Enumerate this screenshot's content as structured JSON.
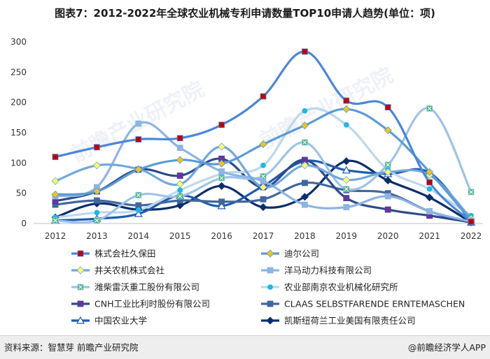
{
  "chart_data": {
    "type": "line",
    "title": "图表7：2012-2022年全球农业机械专利申请数量TOP10申请人趋势(单位：项)",
    "xlabel": "",
    "ylabel": "",
    "ylim": [
      0,
      300
    ],
    "yticks": [
      0,
      50,
      100,
      150,
      200,
      250,
      300
    ],
    "x": [
      "2012",
      "2013",
      "2014",
      "2015",
      "2016",
      "2017",
      "2018",
      "2019",
      "2020",
      "2021",
      "2022"
    ],
    "grid": false,
    "legend_position": "bottom",
    "series": [
      {
        "name": "株式会社久保田",
        "color": "#4a86d9",
        "marker": "square",
        "mfill": "#c00000",
        "values": [
          110,
          126,
          139,
          141,
          163,
          210,
          284,
          203,
          192,
          68,
          3
        ]
      },
      {
        "name": "迪尔公司",
        "color": "#5b9bd5",
        "marker": "diamond",
        "mfill": "#f0c419",
        "values": [
          48,
          53,
          89,
          105,
          99,
          131,
          162,
          189,
          154,
          85,
          5
        ]
      },
      {
        "name": "井关农机株式会社",
        "color": "#6fa8dc",
        "marker": "diamond",
        "mfill": "#ffff66",
        "values": [
          70,
          96,
          90,
          65,
          127,
          60,
          96,
          72,
          85,
          80,
          8
        ]
      },
      {
        "name": "洋马动力科技有限公司",
        "color": "#8db4e2",
        "marker": "square",
        "mfill": "#8db4e2",
        "values": [
          45,
          60,
          165,
          125,
          86,
          70,
          31,
          27,
          45,
          20,
          3
        ]
      },
      {
        "name": "潍柴雷沃重工股份有限公司",
        "color": "#9dc3e6",
        "marker": "xsquare",
        "mfill": "#3cb371",
        "values": [
          5,
          5,
          47,
          45,
          75,
          78,
          134,
          57,
          97,
          190,
          52
        ]
      },
      {
        "name": "农业部南京农业机械化研究所",
        "color": "#bdd7ee",
        "marker": "circle",
        "mfill": "#1fb6e8",
        "values": [
          10,
          18,
          22,
          55,
          82,
          96,
          186,
          163,
          89,
          57,
          13
        ]
      },
      {
        "name": "CNH工业比利时股份有限公司",
        "color": "#2e4a8c",
        "marker": "square",
        "mfill": "#7030a0",
        "values": [
          37,
          53,
          89,
          79,
          107,
          60,
          105,
          42,
          23,
          13,
          2
        ]
      },
      {
        "name": "CLAAS SELBSTFARENDE ERNTEMASCHEN",
        "color": "#41669e",
        "marker": "square",
        "mfill": "#41669e",
        "values": [
          31,
          38,
          30,
          38,
          36,
          40,
          67,
          55,
          50,
          20,
          2
        ]
      },
      {
        "name": "中国农业大学",
        "color": "#1f5bb0",
        "marker": "triangle",
        "mfill": "#ffffff",
        "values": [
          5,
          8,
          16,
          46,
          29,
          62,
          103,
          88,
          82,
          84,
          2
        ]
      },
      {
        "name": "凯斯纽荷兰工业美国有限责任公司",
        "color": "#0b2d6b",
        "marker": "diamond",
        "mfill": "#0b2d6b",
        "values": [
          10,
          33,
          23,
          30,
          62,
          27,
          44,
          103,
          71,
          43,
          2
        ]
      }
    ]
  },
  "footer": {
    "source": "资料来源：智慧芽 前瞻产业研究院",
    "brand": "@前瞻经济学人APP"
  },
  "watermark": "前瞻产业研究院"
}
